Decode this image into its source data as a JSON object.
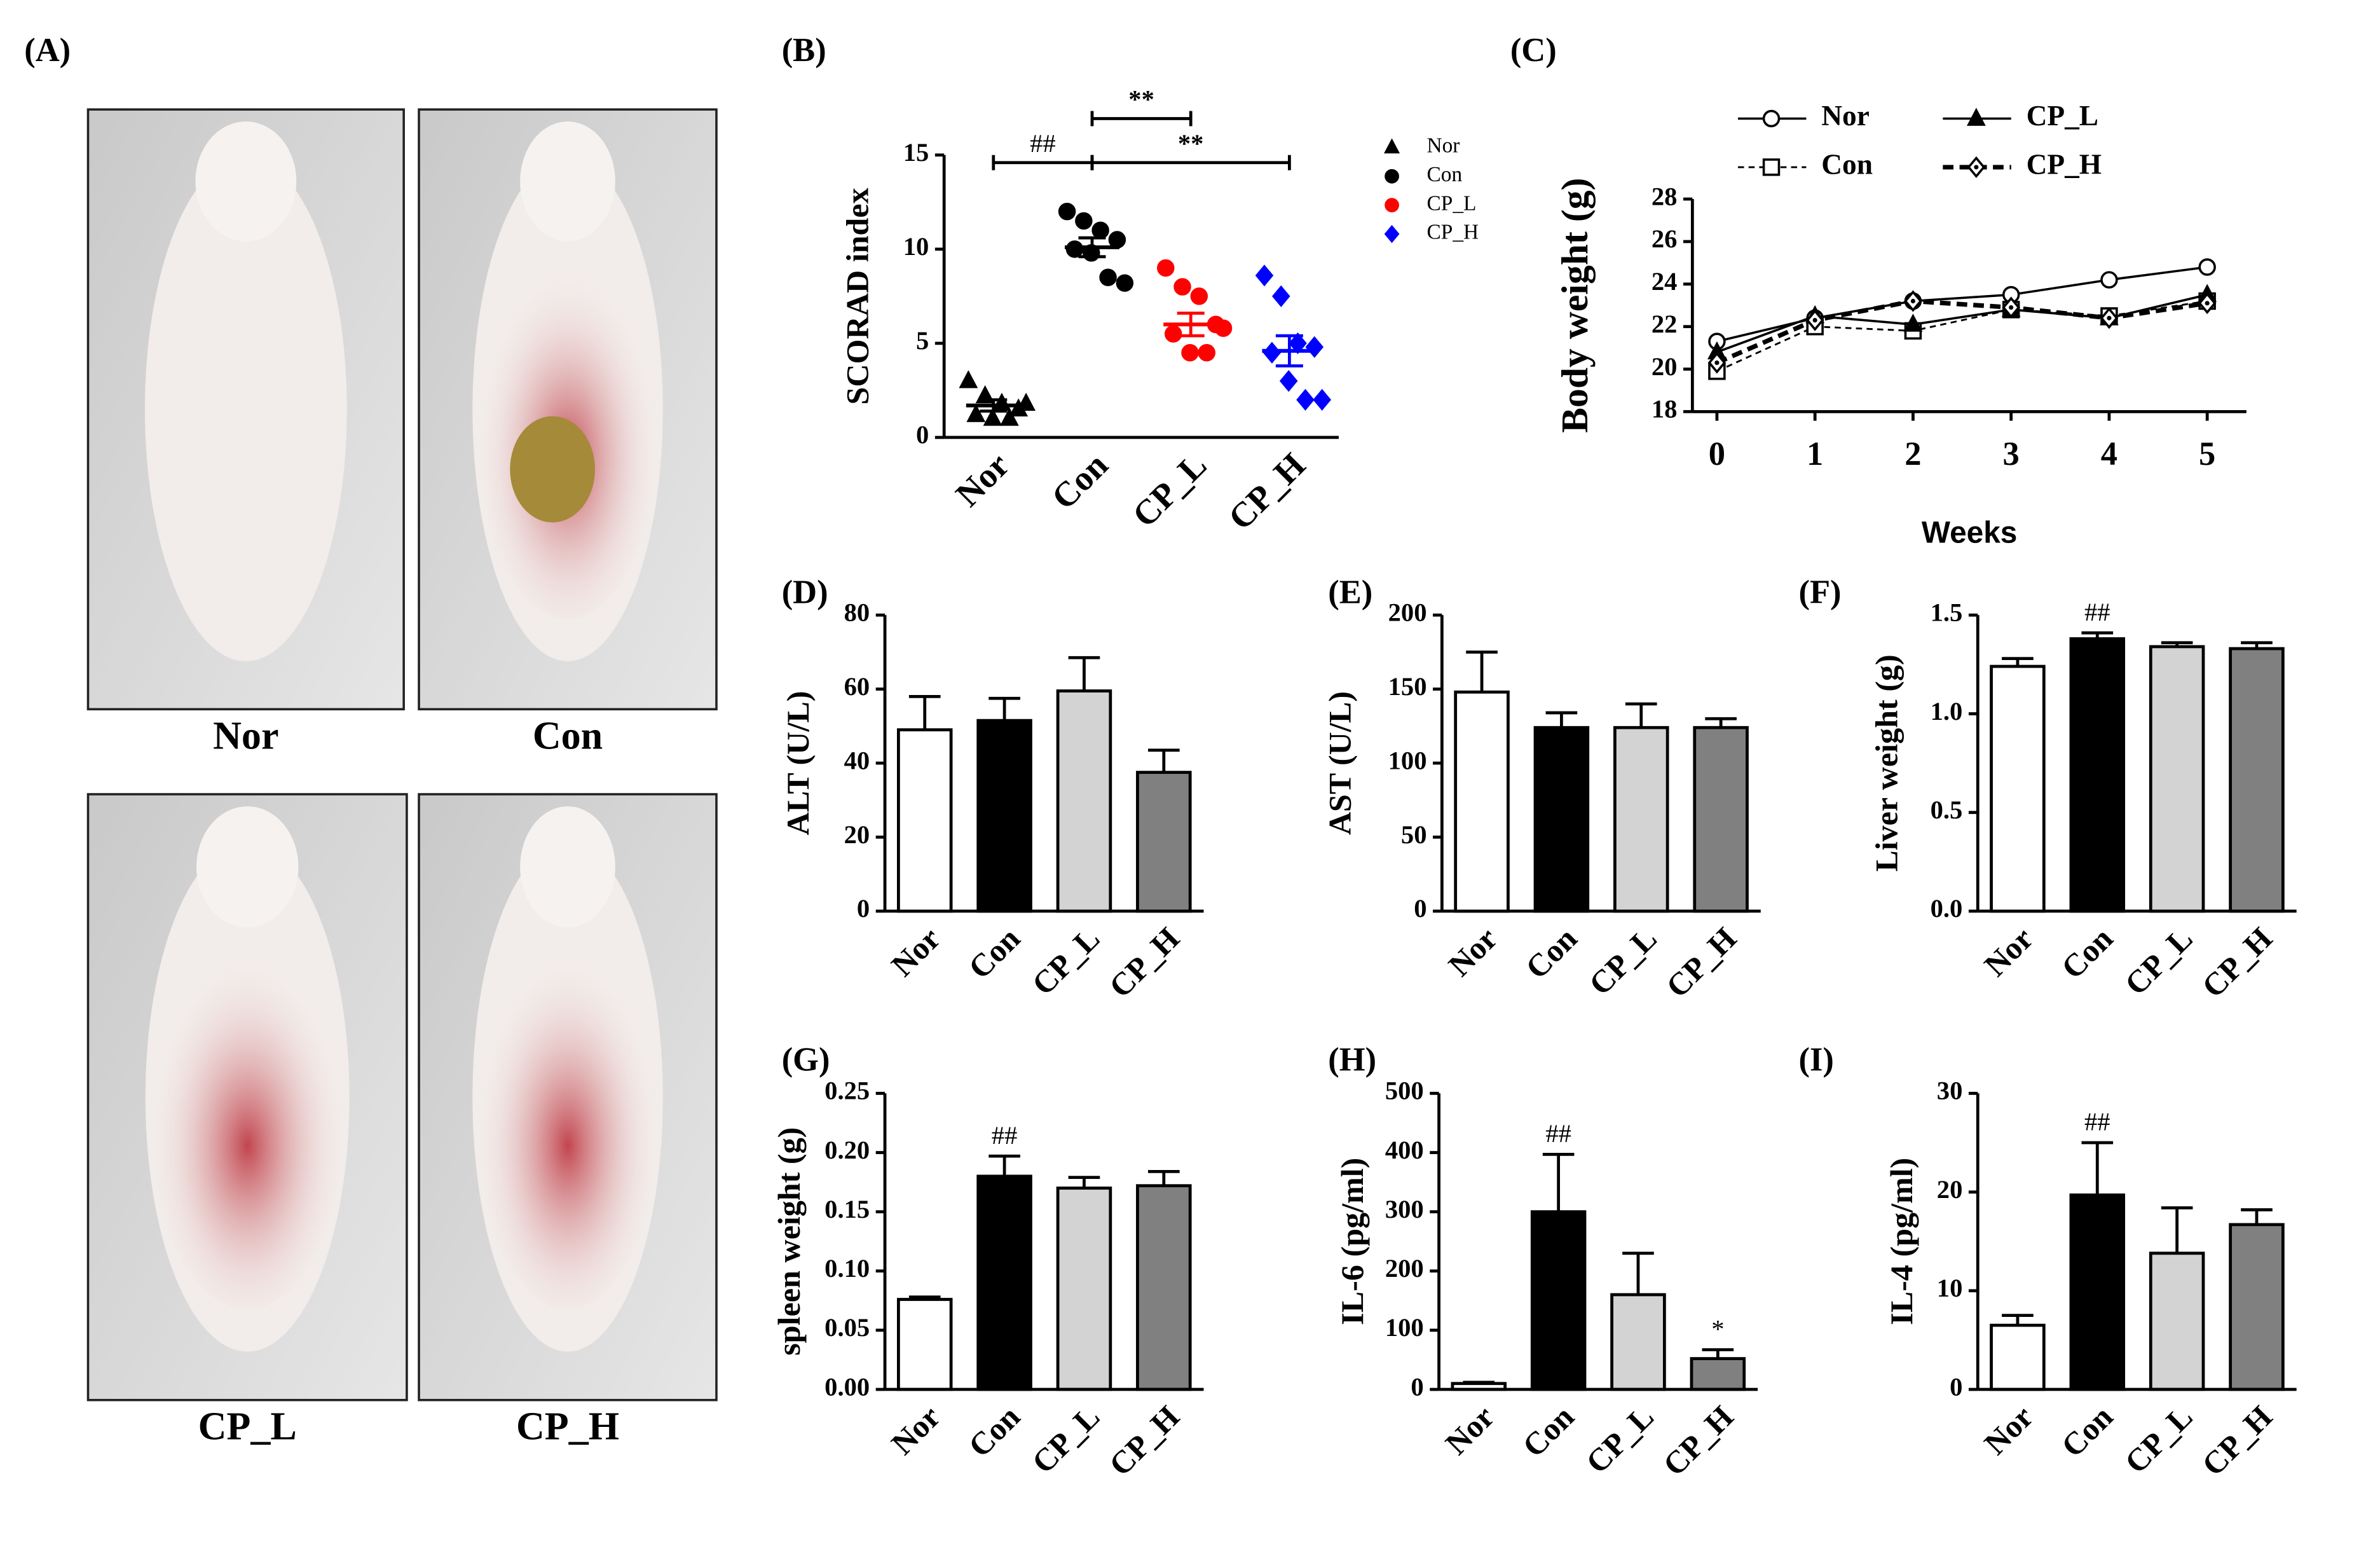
{
  "panel_a": {
    "label": "(A)",
    "photos": [
      "Nor",
      "Con",
      "CP_L",
      "CP_H"
    ]
  },
  "chart_data": [
    {
      "type": "dotplot",
      "label": "(B)",
      "ylabel": "SCORAD index",
      "categories": [
        "Nor",
        "Con",
        "CP_L",
        "CP_H"
      ],
      "groups": [
        [
          3,
          2.2,
          1.8,
          1.5,
          1.2,
          1,
          1,
          1.8
        ],
        [
          12,
          11.5,
          11,
          10.5,
          10,
          9.8,
          8.5,
          8.2
        ],
        [
          9,
          8,
          7.5,
          6,
          5.5,
          4.5,
          4.5,
          5.8
        ],
        [
          8.6,
          7.5,
          5,
          4.8,
          4.5,
          3,
          2,
          2
        ]
      ],
      "means": [
        1.7,
        10.1,
        6,
        4.6
      ],
      "errors": [
        0.3,
        0.5,
        0.6,
        0.8
      ],
      "colors": [
        "#000000",
        "#000000",
        "#ff0000",
        "#0000ff"
      ],
      "markers": [
        "triangle",
        "circle",
        "circle",
        "diamond"
      ],
      "annotations": [
        "##",
        "**",
        "**"
      ],
      "ylim": [
        0,
        15
      ],
      "yticks": [
        0,
        5,
        10,
        15
      ],
      "legend": true
    },
    {
      "type": "line",
      "label": "(C)",
      "ylabel": "Body weight (g)",
      "xlabel": "Weeks",
      "x": [
        0,
        1,
        2,
        3,
        4,
        5
      ],
      "xlim": [
        -0.25,
        5.4
      ],
      "xticks": [
        0,
        1,
        2,
        3,
        4,
        5
      ],
      "ylim": [
        18,
        28
      ],
      "yticks": [
        18,
        20,
        22,
        24,
        26,
        28
      ],
      "series": [
        {
          "name": "Nor",
          "color": "#000000",
          "marker": "circle-open",
          "style": "solid",
          "values": [
            21.3,
            22.4,
            23.2,
            23.5,
            24.2,
            24.8
          ]
        },
        {
          "name": "Con",
          "color": "#000000",
          "marker": "square-open",
          "style": "dashed",
          "values": [
            19.9,
            22.0,
            21.8,
            22.8,
            22.5,
            23.2
          ]
        },
        {
          "name": "CP_L",
          "color": "#000000",
          "marker": "triangle",
          "style": "solid",
          "values": [
            20.8,
            22.5,
            22.1,
            22.8,
            22.4,
            23.5
          ]
        },
        {
          "name": "CP_H",
          "color": "#000000",
          "marker": "diamond-open",
          "style": "heavy-dashed",
          "values": [
            20.3,
            22.3,
            23.2,
            22.9,
            22.4,
            23.1
          ]
        }
      ]
    },
    {
      "type": "bar",
      "label": "(D)",
      "ylabel": "ALT (U/L)",
      "categories": [
        "Nor",
        "Con",
        "CP_L",
        "CP_H"
      ],
      "values": [
        49,
        51.5,
        59.5,
        37.5
      ],
      "errors": [
        9,
        6,
        9,
        6
      ],
      "colors": [
        "#ffffff",
        "#000000",
        "#d3d3d3",
        "#808080"
      ],
      "annotations": [
        null,
        null,
        null,
        null
      ],
      "ylim": [
        0,
        80
      ],
      "yticks": [
        0,
        20,
        40,
        60,
        80
      ]
    },
    {
      "type": "bar",
      "label": "(E)",
      "ylabel": "AST (U/L)",
      "categories": [
        "Nor",
        "Con",
        "CP_L",
        "CP_H"
      ],
      "values": [
        148,
        124,
        124,
        124
      ],
      "errors": [
        27,
        10,
        16,
        6
      ],
      "colors": [
        "#ffffff",
        "#000000",
        "#d3d3d3",
        "#808080"
      ],
      "annotations": [
        null,
        null,
        null,
        null
      ],
      "ylim": [
        0,
        200
      ],
      "yticks": [
        0,
        50,
        100,
        150,
        200
      ]
    },
    {
      "type": "bar",
      "label": "(F)",
      "ylabel": "Liver weight (g)",
      "categories": [
        "Nor",
        "Con",
        "CP_L",
        "CP_H"
      ],
      "values": [
        1.24,
        1.38,
        1.34,
        1.33
      ],
      "errors": [
        0.04,
        0.03,
        0.02,
        0.03
      ],
      "colors": [
        "#ffffff",
        "#000000",
        "#d3d3d3",
        "#808080"
      ],
      "annotations": [
        null,
        "##",
        null,
        null
      ],
      "ylim": [
        0,
        1.5
      ],
      "yticks": [
        {
          "value": 0,
          "label": "0.0"
        },
        0.5,
        {
          "value": 1,
          "label": "1.0"
        },
        1.5
      ]
    },
    {
      "type": "bar",
      "label": "(G)",
      "ylabel": "spleen weight (g)",
      "categories": [
        "Nor",
        "Con",
        "CP_L",
        "CP_H"
      ],
      "values": [
        0.076,
        0.18,
        0.17,
        0.172
      ],
      "errors": [
        0.002,
        0.017,
        0.009,
        0.012
      ],
      "colors": [
        "#ffffff",
        "#000000",
        "#d3d3d3",
        "#808080"
      ],
      "annotations": [
        null,
        "##",
        null,
        null
      ],
      "ylim": [
        0,
        0.25
      ],
      "yticks": [
        {
          "value": 0,
          "label": "0.00"
        },
        0.05,
        {
          "value": 0.1,
          "label": "0.10"
        },
        0.15,
        {
          "value": 0.2,
          "label": "0.20"
        },
        0.25
      ]
    },
    {
      "type": "bar",
      "label": "(H)",
      "ylabel": "IL-6 (pg/ml)",
      "categories": [
        "Nor",
        "Con",
        "CP_L",
        "CP_H"
      ],
      "values": [
        10,
        300,
        160,
        52
      ],
      "errors": [
        2,
        97,
        70,
        15
      ],
      "colors": [
        "#ffffff",
        "#000000",
        "#d3d3d3",
        "#808080"
      ],
      "annotations": [
        null,
        "##",
        null,
        "*"
      ],
      "ylim": [
        0,
        500
      ],
      "yticks": [
        0,
        100,
        200,
        300,
        400,
        500
      ]
    },
    {
      "type": "bar",
      "label": "(I)",
      "ylabel": "IL-4 (pg/ml)",
      "categories": [
        "Nor",
        "Con",
        "CP_L",
        "CP_H"
      ],
      "values": [
        6.5,
        19.7,
        13.8,
        16.7
      ],
      "errors": [
        1,
        5.3,
        4.6,
        1.5
      ],
      "colors": [
        "#ffffff",
        "#000000",
        "#d3d3d3",
        "#808080"
      ],
      "annotations": [
        null,
        "##",
        null,
        null
      ],
      "ylim": [
        0,
        30
      ],
      "yticks": [
        0,
        10,
        20,
        30
      ]
    }
  ]
}
